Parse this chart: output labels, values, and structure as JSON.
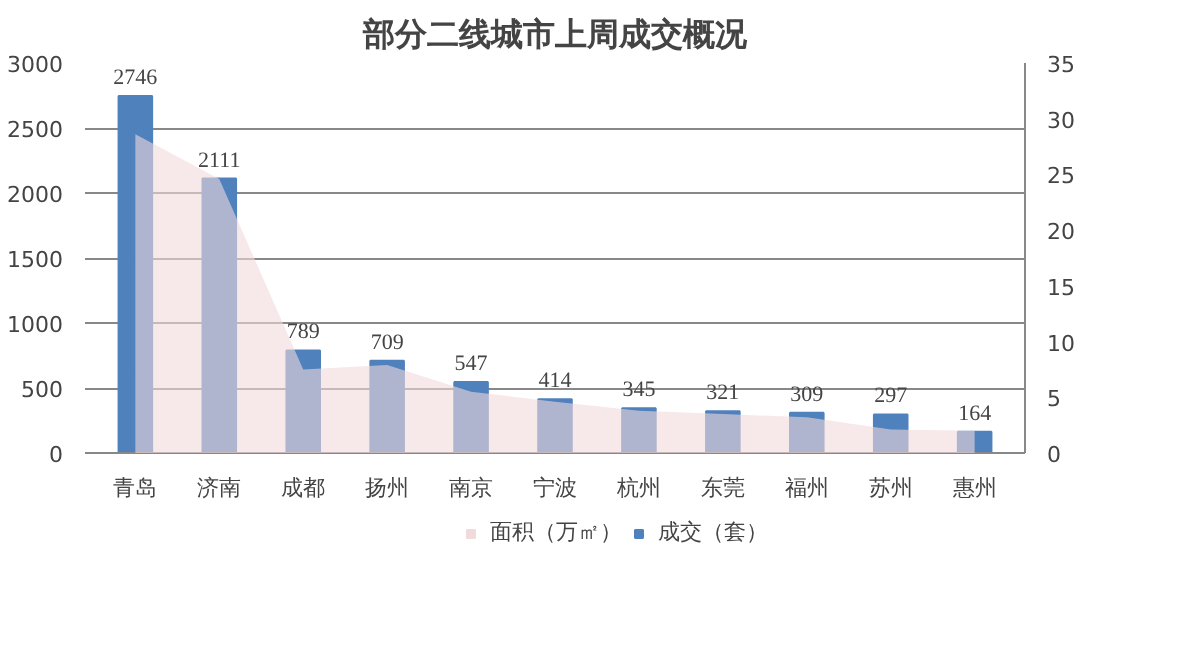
{
  "chart_data": {
    "type": "bar",
    "title": "部分二线城市上周成交概况",
    "categories": [
      "青岛",
      "济南",
      "成都",
      "扬州",
      "南京",
      "宁波",
      "杭州",
      "东莞",
      "福州",
      "苏州",
      "惠州"
    ],
    "series": [
      {
        "name": "面积（万㎡）",
        "type": "area",
        "axis": "y2",
        "color": "#f2d9db",
        "values": [
          28.6,
          24.6,
          7.5,
          7.9,
          5.5,
          4.6,
          3.8,
          3.5,
          3.2,
          2.1,
          2.0
        ]
      },
      {
        "name": "成交（套）",
        "color": "#4f81bd",
        "values": [
          2746,
          2111,
          789,
          709,
          547,
          414,
          345,
          321,
          309,
          297,
          164
        ],
        "value_labels": [
          "2746",
          "2111",
          "789",
          "709",
          "547",
          "414",
          "345",
          "321",
          "309",
          "297",
          "164"
        ]
      }
    ],
    "ylim": [
      0,
      3000
    ],
    "yticks": [
      0,
      500,
      1000,
      1500,
      2000,
      2500,
      3000
    ],
    "y2lim": [
      0,
      35
    ],
    "y2ticks": [
      0,
      5,
      10,
      15,
      20,
      25,
      30,
      35
    ],
    "grid": "y",
    "legend": "bottom"
  }
}
